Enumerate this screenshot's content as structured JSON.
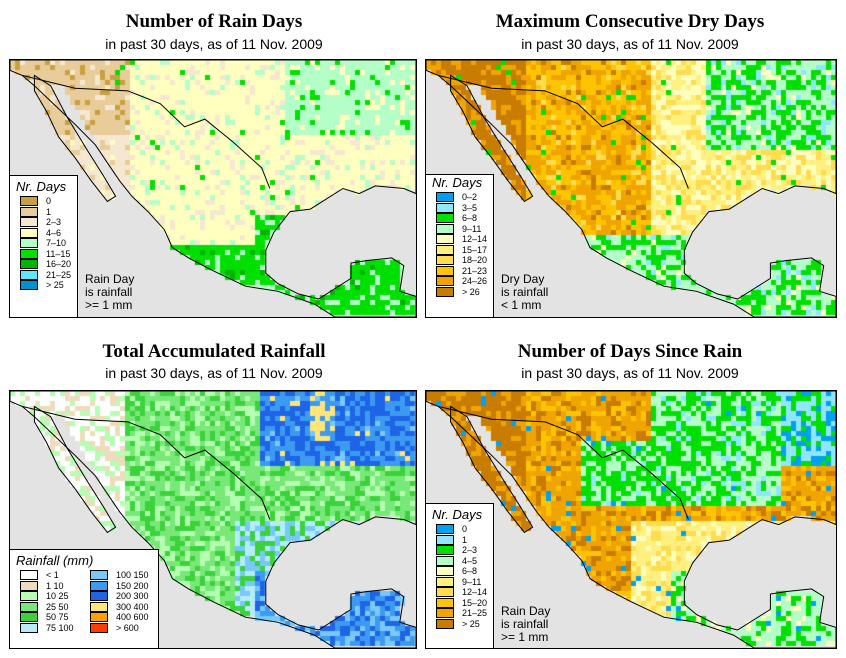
{
  "panels": [
    {
      "id": "rain-days",
      "title": "Number of Rain Days",
      "subtitle": "in past 30 days, as of  11 Nov. 2009",
      "legend": {
        "title": "Nr. Days",
        "items": [
          {
            "label": "0",
            "color": "#c9a040"
          },
          {
            "label": "1",
            "color": "#e8cc9a"
          },
          {
            "label": "2–3",
            "color": "#f6e8d0"
          },
          {
            "label": "4–6",
            "color": "#ffffc0"
          },
          {
            "label": "7–10",
            "color": "#b4ffc8"
          },
          {
            "label": "11–15",
            "color": "#00e000"
          },
          {
            "label": "16–20",
            "color": "#00b400"
          },
          {
            "label": "21–25",
            "color": "#60e6ff"
          },
          {
            "label": "> 25",
            "color": "#0090d0"
          }
        ]
      },
      "note": [
        "Rain Day",
        "is rainfall",
        ">= 1 mm"
      ]
    },
    {
      "id": "dry-days",
      "title": "Maximum Consecutive Dry Days",
      "subtitle": "in past 30 days, as of  11 Nov. 2009",
      "legend": {
        "title": "Nr. Days",
        "items": [
          {
            "label": "0–2",
            "color": "#00a0f0"
          },
          {
            "label": "3–5",
            "color": "#90e6ff"
          },
          {
            "label": "6–8",
            "color": "#00e000"
          },
          {
            "label": "9–11",
            "color": "#b4ffc8"
          },
          {
            "label": "12–14",
            "color": "#ffffc0"
          },
          {
            "label": "15–17",
            "color": "#fff080"
          },
          {
            "label": "18–20",
            "color": "#ffdc50"
          },
          {
            "label": "21–23",
            "color": "#ffc400"
          },
          {
            "label": "24–26",
            "color": "#f0a400"
          },
          {
            "label": "> 26",
            "color": "#c87c00"
          }
        ]
      },
      "note": [
        "Dry Day",
        "is rainfall",
        "< 1 mm"
      ]
    },
    {
      "id": "total-rainfall",
      "title": "Total Accumulated Rainfall",
      "subtitle": "in past 30 days, as of  11 Nov. 2009",
      "legend": {
        "title": "Rainfall (mm)",
        "items": [
          {
            "label": "< 1",
            "color": "#ffffff"
          },
          {
            "label": "1   10",
            "color": "#eedcbc"
          },
          {
            "label": "10   25",
            "color": "#b4ffb0"
          },
          {
            "label": "25   50",
            "color": "#78e878"
          },
          {
            "label": "50   75",
            "color": "#3cd23c"
          },
          {
            "label": "75  100",
            "color": "#b4ecfa"
          },
          {
            "label": "100  150",
            "color": "#78c8fa"
          },
          {
            "label": "150  200",
            "color": "#3c9bf0"
          },
          {
            "label": "200  300",
            "color": "#1e64e6"
          },
          {
            "label": "300  400",
            "color": "#ffe678"
          },
          {
            "label": "400  600",
            "color": "#ffa000"
          },
          {
            "label": "> 600",
            "color": "#ff3c00"
          }
        ]
      },
      "note": []
    },
    {
      "id": "days-since-rain",
      "title": "Number of Days Since Rain",
      "subtitle": "in past 30 days, as of  11 Nov. 2009",
      "legend": {
        "title": "Nr. Days",
        "items": [
          {
            "label": "0",
            "color": "#00a0f0"
          },
          {
            "label": "1",
            "color": "#90e6ff"
          },
          {
            "label": "2–3",
            "color": "#00e000"
          },
          {
            "label": "4–5",
            "color": "#b4ffc8"
          },
          {
            "label": "6–8",
            "color": "#ffffc0"
          },
          {
            "label": "9–11",
            "color": "#fff080"
          },
          {
            "label": "12–14",
            "color": "#ffdc50"
          },
          {
            "label": "15–20",
            "color": "#ffc400"
          },
          {
            "label": "21–25",
            "color": "#f0a400"
          },
          {
            "label": "> 25",
            "color": "#c87c00"
          }
        ]
      },
      "note": [
        "Rain Day",
        "is rainfall",
        ">= 1 mm"
      ]
    }
  ],
  "colors": {
    "ocean": "#e3e3e3",
    "border": "#000000"
  }
}
